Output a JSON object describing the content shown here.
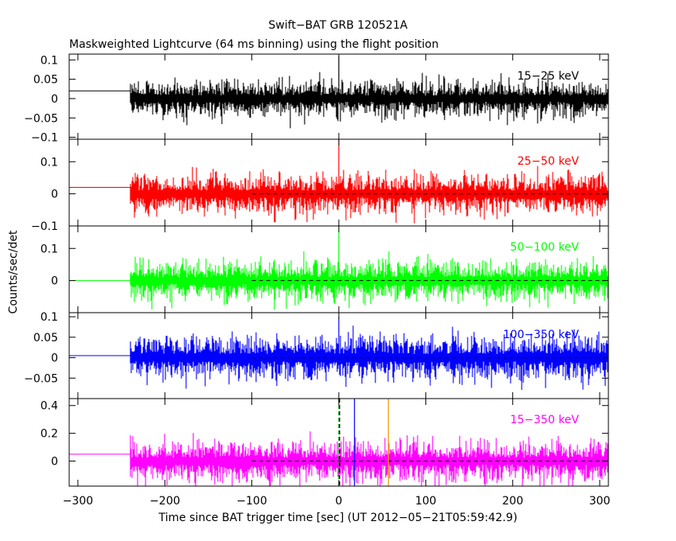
{
  "chart_data": {
    "type": "line",
    "title": "Swift−BAT GRB 120521A",
    "subtitle": "Maskweighted Lightcurve (64 ms binning) using the flight position",
    "xlabel": "Time since BAT trigger time [sec] (UT 2012−05−21T05:59:42.9)",
    "ylabel": "Counts/sec/det",
    "xlim": [
      -310,
      310
    ],
    "xticks": [
      -300,
      -200,
      -100,
      0,
      100,
      200,
      300
    ],
    "xtick_labels": [
      "−300",
      "−200",
      "−100",
      "0",
      "100",
      "200",
      "300"
    ],
    "grid": false,
    "data_start": -240,
    "pre_level_to": -240,
    "zero_line_from": -100,
    "markers": [
      {
        "x": 0,
        "color": "#00bb00",
        "style": "dashed"
      },
      {
        "x": 0,
        "color": "#000000",
        "style": "dashed"
      },
      {
        "x": 18,
        "color": "#0000ff",
        "style": "solid"
      },
      {
        "x": 57,
        "color": "#ee9900",
        "style": "solid"
      }
    ],
    "panels": [
      {
        "band": "15−25 keV",
        "color": "#000000",
        "ylim": [
          -0.105,
          0.115
        ],
        "yticks": [
          -0.1,
          -0.05,
          0,
          0.05,
          0.1
        ],
        "ytick_labels": [
          "−0.1",
          "−0.05",
          "0",
          "0.05",
          "0.1"
        ],
        "pre_level": 0.02,
        "noise_amplitude": 0.04,
        "peak": 0.11,
        "zero_line": false,
        "markers": false
      },
      {
        "band": "25−50 keV",
        "color": "#ff0000",
        "ylim": [
          -0.1,
          0.17
        ],
        "yticks": [
          -0.1,
          0,
          0.1
        ],
        "ytick_labels": [
          "−0.1",
          "0",
          "0.1"
        ],
        "pre_level": 0.02,
        "noise_amplitude": 0.05,
        "peak": 0.17,
        "zero_line": true,
        "markers": false
      },
      {
        "band": "50−100 keV",
        "color": "#00ff00",
        "ylim": [
          -0.1,
          0.17
        ],
        "yticks": [
          0,
          0.1
        ],
        "ytick_labels": [
          "0",
          "0.1"
        ],
        "pre_level": 0.0,
        "noise_amplitude": 0.05,
        "peak": 0.17,
        "zero_line": true,
        "markers": false
      },
      {
        "band": "100−350 keV",
        "color": "#0000ff",
        "ylim": [
          -0.1,
          0.11
        ],
        "yticks": [
          -0.05,
          0,
          0.05,
          0.1
        ],
        "ytick_labels": [
          "−0.05",
          "0",
          "0.05",
          "0.1"
        ],
        "pre_level": 0.005,
        "noise_amplitude": 0.045,
        "peak": 0.1,
        "zero_line": true,
        "markers": false
      },
      {
        "band": "15−350 keV",
        "color": "#ff00ff",
        "ylim": [
          -0.18,
          0.45
        ],
        "yticks": [
          0,
          0.2,
          0.4
        ],
        "ytick_labels": [
          "0",
          "0.2",
          "0.4"
        ],
        "pre_level": 0.05,
        "noise_amplitude": 0.12,
        "peak": 0.1,
        "zero_line": true,
        "markers": true
      }
    ]
  }
}
